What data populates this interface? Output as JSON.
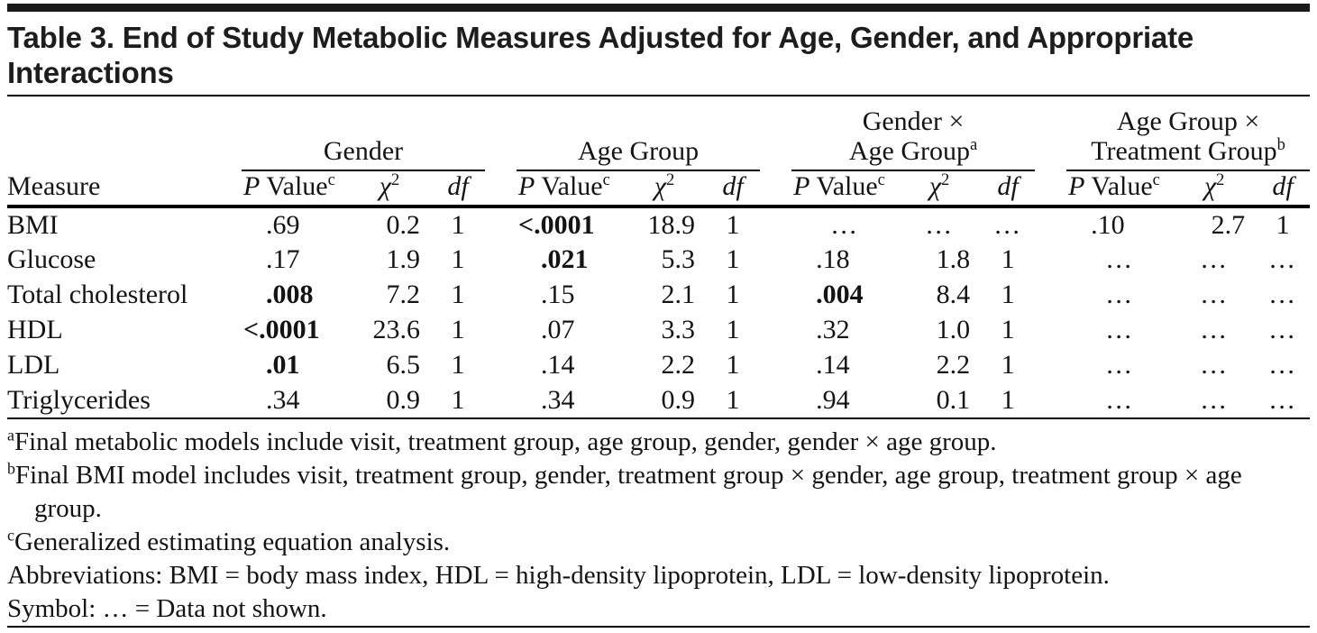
{
  "title_lines": [
    "Table 3. End of Study Metabolic Measures Adjusted for Age, Gender, and Appropriate",
    "Interactions"
  ],
  "table": {
    "measure_header": "Measure",
    "groups": [
      {
        "lines": [
          "Gender"
        ],
        "sup": ""
      },
      {
        "lines": [
          "Age Group"
        ],
        "sup": ""
      },
      {
        "lines": [
          "Gender ×",
          "Age Group"
        ],
        "sup": "a"
      },
      {
        "lines": [
          "Age Group ×",
          "Treatment Group"
        ],
        "sup": "b"
      }
    ],
    "subheader": {
      "p_italic": "P",
      "p_rest": " Value",
      "p_sup": "c",
      "chi": "χ",
      "chi_sup": "2",
      "df": "df"
    },
    "rows": [
      {
        "measure": "BMI",
        "values": [
          ".69",
          "0.2",
          "1",
          "<.0001",
          "18.9",
          "1",
          "…",
          "…",
          "…",
          ".10",
          "2.7",
          "1"
        ],
        "bold": [
          3
        ]
      },
      {
        "measure": "Glucose",
        "values": [
          ".17",
          "1.9",
          "1",
          ".021",
          "5.3",
          "1",
          ".18",
          "1.8",
          "1",
          "…",
          "…",
          "…"
        ],
        "bold": [
          3
        ]
      },
      {
        "measure": "Total cholesterol",
        "values": [
          ".008",
          "7.2",
          "1",
          ".15",
          "2.1",
          "1",
          ".004",
          "8.4",
          "1",
          "…",
          "…",
          "…"
        ],
        "bold": [
          0,
          1,
          6
        ]
      },
      {
        "measure": "HDL",
        "values": [
          "<.0001",
          "23.6",
          "1",
          ".07",
          "3.3",
          "1",
          ".32",
          "1.0",
          "1",
          "…",
          "…",
          "…"
        ],
        "bold": [
          0
        ]
      },
      {
        "measure": "LDL",
        "values": [
          ".01",
          "6.5",
          "1",
          ".14",
          "2.2",
          "1",
          ".14",
          "2.2",
          "1",
          "…",
          "…",
          "…"
        ],
        "bold": [
          0
        ]
      },
      {
        "measure": "Triglycerides",
        "values": [
          ".34",
          "0.9",
          "1",
          ".34",
          "0.9",
          "1",
          ".94",
          "0.1",
          "1",
          "…",
          "…",
          "…"
        ],
        "bold": []
      }
    ]
  },
  "footnotes": [
    {
      "sup": "a",
      "text": "Final metabolic models include visit, treatment group, age group, gender, gender × age group."
    },
    {
      "sup": "b",
      "text": "Final BMI model includes visit, treatment group, gender, treatment group × gender, age group, treatment group × age group."
    },
    {
      "sup": "c",
      "text": "Generalized estimating equation analysis."
    },
    {
      "sup": "",
      "text": "Abbreviations: BMI = body mass index, HDL = high-density lipoprotein, LDL = low-density lipoprotein."
    },
    {
      "sup": "",
      "text": "Symbol: … = Data not shown."
    }
  ],
  "colors": {
    "text": "#141414",
    "rule": "#000000",
    "top_bar": "#1a1a1a",
    "background": "#ffffff"
  }
}
